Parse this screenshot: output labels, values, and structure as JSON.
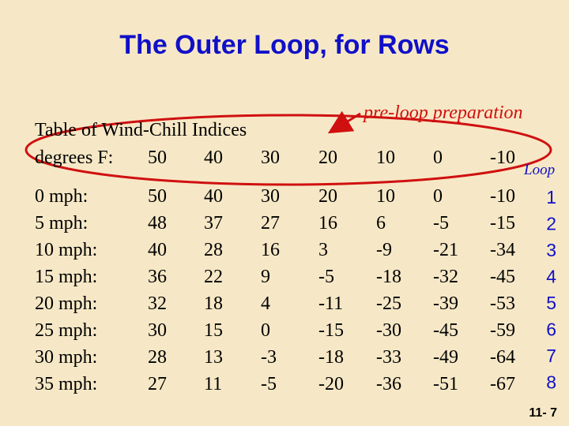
{
  "header": {
    "title": "The Outer Loop, for Rows"
  },
  "table": {
    "caption": "Table of Wind-Chill Indices",
    "header": [
      "degrees F:",
      "50",
      "40",
      "30",
      "20",
      "10",
      "0",
      "-10"
    ],
    "rows": [
      [
        "0 mph:",
        "50",
        "40",
        "30",
        "20",
        "10",
        "0",
        "-10"
      ],
      [
        "5 mph:",
        "48",
        "37",
        "27",
        "16",
        "6",
        "-5",
        "-15"
      ],
      [
        "10 mph:",
        "40",
        "28",
        "16",
        "3",
        "-9",
        "-21",
        "-34"
      ],
      [
        "15 mph:",
        "36",
        "22",
        "9",
        "-5",
        "-18",
        "-32",
        "-45"
      ],
      [
        "20 mph:",
        "32",
        "18",
        "4",
        "-11",
        "-25",
        "-39",
        "-53"
      ],
      [
        "25 mph:",
        "30",
        "15",
        "0",
        "-15",
        "-30",
        "-45",
        "-59"
      ],
      [
        "30 mph:",
        "28",
        "13",
        "-3",
        "-18",
        "-33",
        "-49",
        "-64"
      ],
      [
        "35 mph:",
        "27",
        "11",
        "-5",
        "-20",
        "-36",
        "-51",
        "-67"
      ]
    ]
  },
  "annotations": {
    "preloop": "pre-loop preparation",
    "loop": "Loop",
    "iterations": [
      "1",
      "2",
      "3",
      "4",
      "5",
      "6",
      "7",
      "8"
    ]
  },
  "footer": {
    "slide_number": "11- 7"
  }
}
